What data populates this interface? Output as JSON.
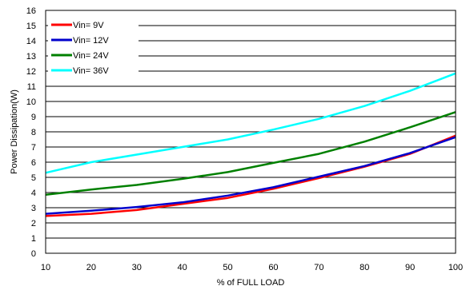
{
  "chart_data": {
    "type": "line",
    "title": "",
    "xlabel": "% of FULL LOAD",
    "ylabel": "Power Dissipation(W)",
    "xlim": [
      10,
      100
    ],
    "ylim": [
      0,
      16
    ],
    "xticks": [
      10,
      20,
      30,
      40,
      50,
      60,
      70,
      80,
      90,
      100
    ],
    "yticks": [
      0,
      1,
      2,
      3,
      4,
      5,
      6,
      7,
      8,
      9,
      10,
      11,
      12,
      13,
      14,
      15,
      16
    ],
    "grid": "horizontal",
    "legend": "top-left",
    "x": [
      10,
      20,
      30,
      40,
      50,
      60,
      70,
      80,
      90,
      100
    ],
    "series": [
      {
        "name": "Vin= 9V",
        "color": "#ff0000",
        "values": [
          2.45,
          2.6,
          2.85,
          3.25,
          3.65,
          4.25,
          4.95,
          5.7,
          6.55,
          7.75
        ]
      },
      {
        "name": "Vin= 12V",
        "color": "#0000cc",
        "values": [
          2.6,
          2.8,
          3.05,
          3.35,
          3.8,
          4.35,
          5.05,
          5.75,
          6.6,
          7.65
        ]
      },
      {
        "name": "Vin= 24V",
        "color": "#008000",
        "values": [
          3.85,
          4.2,
          4.5,
          4.9,
          5.35,
          5.95,
          6.55,
          7.35,
          8.3,
          9.3
        ]
      },
      {
        "name": "Vin= 36V",
        "color": "#00ffff",
        "values": [
          5.3,
          6.0,
          6.5,
          7.0,
          7.5,
          8.15,
          8.85,
          9.7,
          10.7,
          11.85
        ]
      }
    ]
  }
}
